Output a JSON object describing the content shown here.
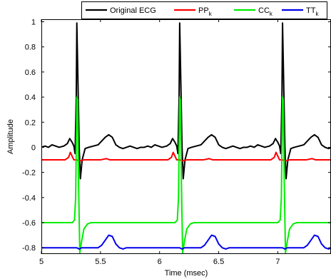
{
  "chart_data": {
    "type": "line",
    "xlabel": "Time (msec)",
    "ylabel": "Amplitude",
    "xlim": [
      5.0,
      7.45
    ],
    "ylim": [
      -0.85,
      1.02
    ],
    "xticks": [
      5,
      5.5,
      6,
      6.5,
      7
    ],
    "xtick_labels": [
      "5",
      "5.5",
      "6",
      "6.5",
      "7"
    ],
    "yticks": [
      -0.8,
      -0.6,
      -0.4,
      -0.2,
      0,
      0.2,
      0.4,
      0.6,
      0.8,
      1
    ],
    "ytick_labels": [
      "-0.8",
      "-0.6",
      "-0.4",
      "-0.2",
      "0",
      "0.2",
      "0.4",
      "0.6",
      "0.8",
      "1"
    ],
    "grid": false,
    "legend_position": "top",
    "beat_times": [
      5.3,
      6.17,
      7.04
    ],
    "series": [
      {
        "name": "Original ECG",
        "subscript": "",
        "color": "#000000",
        "baseline": 0.0,
        "beat_template": [
          [
            -0.3,
            0.0
          ],
          [
            -0.27,
            0.01
          ],
          [
            -0.24,
            0.0
          ],
          [
            -0.21,
            0.02
          ],
          [
            -0.18,
            0.01
          ],
          [
            -0.15,
            0.0
          ],
          [
            -0.11,
            0.01
          ],
          [
            -0.08,
            0.03
          ],
          [
            -0.06,
            0.07
          ],
          [
            -0.04,
            0.04
          ],
          [
            -0.025,
            0.01
          ],
          [
            -0.015,
            -0.05
          ],
          [
            -0.005,
            0.4
          ],
          [
            0.0,
            0.99
          ],
          [
            0.008,
            0.6
          ],
          [
            0.02,
            0.0
          ],
          [
            0.03,
            -0.25
          ],
          [
            0.045,
            -0.1
          ],
          [
            0.07,
            -0.01
          ],
          [
            0.1,
            0.0
          ],
          [
            0.14,
            0.01
          ],
          [
            0.18,
            0.02
          ],
          [
            0.21,
            0.05
          ],
          [
            0.24,
            0.08
          ],
          [
            0.27,
            0.1
          ],
          [
            0.3,
            0.08
          ],
          [
            0.33,
            0.02
          ],
          [
            0.36,
            0.0
          ],
          [
            0.39,
            -0.01
          ],
          [
            0.42,
            0.0
          ],
          [
            0.45,
            0.01
          ],
          [
            0.48,
            0.0
          ],
          [
            0.51,
            -0.01
          ],
          [
            0.54,
            0.0
          ],
          [
            0.57,
            0.0
          ]
        ]
      },
      {
        "name": "PP",
        "subscript": "k",
        "color": "#ff0000",
        "baseline": -0.1,
        "beat_template": [
          [
            -0.3,
            -0.1
          ],
          [
            -0.15,
            -0.1
          ],
          [
            -0.1,
            -0.1
          ],
          [
            -0.07,
            -0.08
          ],
          [
            -0.055,
            -0.04
          ],
          [
            -0.04,
            -0.07
          ],
          [
            -0.025,
            -0.1
          ],
          [
            0.0,
            -0.1
          ],
          [
            0.02,
            -0.11
          ],
          [
            0.06,
            -0.1
          ],
          [
            0.2,
            -0.1
          ],
          [
            0.25,
            -0.09
          ],
          [
            0.28,
            -0.1
          ],
          [
            0.4,
            -0.1
          ],
          [
            0.57,
            -0.1
          ]
        ]
      },
      {
        "name": "CC",
        "subscript": "k",
        "color": "#00ee00",
        "baseline": -0.6,
        "beat_template": [
          [
            -0.3,
            -0.6
          ],
          [
            -0.04,
            -0.6
          ],
          [
            -0.02,
            -0.58
          ],
          [
            -0.01,
            -0.4
          ],
          [
            0.0,
            0.4
          ],
          [
            0.006,
            0.38
          ],
          [
            0.015,
            -0.3
          ],
          [
            0.025,
            -0.84
          ],
          [
            0.04,
            -0.75
          ],
          [
            0.06,
            -0.65
          ],
          [
            0.09,
            -0.61
          ],
          [
            0.12,
            -0.6
          ],
          [
            0.57,
            -0.6
          ]
        ]
      },
      {
        "name": "TT",
        "subscript": "k",
        "color": "#0000ee",
        "baseline": -0.8,
        "beat_template": [
          [
            -0.3,
            -0.8
          ],
          [
            0.0,
            -0.8
          ],
          [
            0.02,
            -0.81
          ],
          [
            0.04,
            -0.8
          ],
          [
            0.18,
            -0.8
          ],
          [
            0.21,
            -0.78
          ],
          [
            0.24,
            -0.74
          ],
          [
            0.27,
            -0.7
          ],
          [
            0.3,
            -0.71
          ],
          [
            0.33,
            -0.77
          ],
          [
            0.36,
            -0.8
          ],
          [
            0.39,
            -0.81
          ],
          [
            0.42,
            -0.8
          ],
          [
            0.57,
            -0.8
          ]
        ]
      }
    ]
  }
}
